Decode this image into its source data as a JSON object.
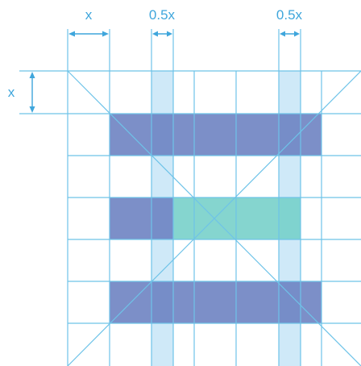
{
  "labels": {
    "top_x": "x",
    "top_half_left": "0.5x",
    "top_half_right": "0.5x",
    "side_x": "x"
  },
  "colors": {
    "grid_line": "#6ec3e8",
    "label": "#3fa6dc",
    "bar_blue": "#6a7fc0",
    "bar_teal": "#74cfc8",
    "column_highlight": "#cfe9f8",
    "background": "#ffffff"
  },
  "icons": {
    "dimension_arrow": "double-headed-arrow"
  }
}
